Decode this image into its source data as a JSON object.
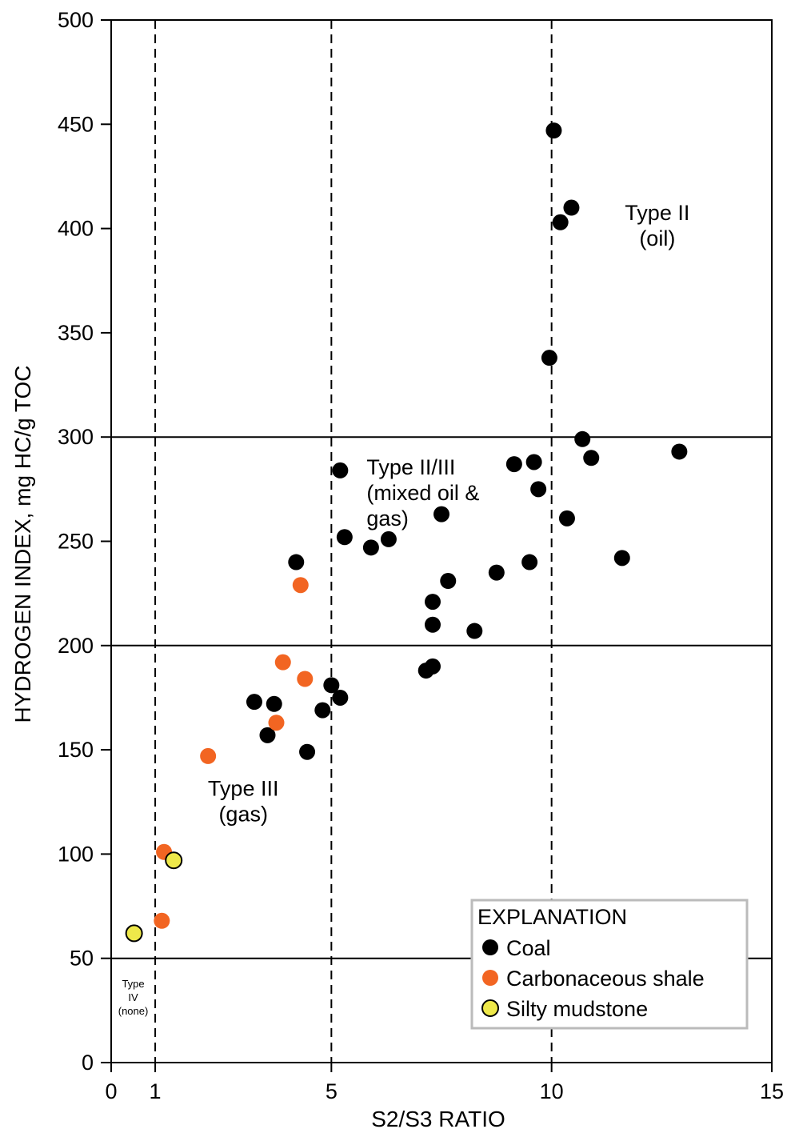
{
  "chart_data": {
    "type": "scatter",
    "xlabel": "S2/S3 RATIO",
    "ylabel": "HYDROGEN INDEX, mg HC/g TOC",
    "xlim": [
      0,
      15
    ],
    "ylim": [
      0,
      500
    ],
    "xticks": [
      0,
      1,
      5,
      10,
      15
    ],
    "yticks": [
      0,
      50,
      100,
      150,
      200,
      250,
      300,
      350,
      400,
      450,
      500
    ],
    "grid": false,
    "vertical_divider_lines": [
      1,
      5,
      10
    ],
    "horizontal_divider_lines": [
      50,
      200,
      300
    ],
    "region_labels": [
      {
        "lines": [
          "Type II",
          "(oil)"
        ],
        "x": 12.4,
        "y": 404,
        "size": "normal",
        "anchor": "middle"
      },
      {
        "lines": [
          "Type II/III",
          "(mixed oil &",
          "gas)"
        ],
        "x": 5.8,
        "y": 282,
        "size": "normal",
        "anchor": "start"
      },
      {
        "lines": [
          "Type III",
          "(gas)"
        ],
        "x": 3.0,
        "y": 128,
        "size": "normal",
        "anchor": "middle"
      },
      {
        "lines": [
          "Type",
          "IV",
          "(none)"
        ],
        "x": 0.5,
        "y": 36,
        "size": "small",
        "anchor": "middle"
      }
    ],
    "legend": {
      "title": "EXPLANATION",
      "position": "bottom-right",
      "entries": [
        {
          "label": "Coal",
          "color": "#000000"
        },
        {
          "label": "Carbonaceous shale",
          "color": "#F26522"
        },
        {
          "label": "Silty mudstone",
          "color": "#EEE84A"
        }
      ]
    },
    "series": [
      {
        "name": "Coal",
        "color": "#000000",
        "points": [
          [
            10.05,
            447
          ],
          [
            10.45,
            410
          ],
          [
            10.2,
            403
          ],
          [
            9.95,
            338
          ],
          [
            10.7,
            299
          ],
          [
            12.9,
            293
          ],
          [
            10.9,
            290
          ],
          [
            9.15,
            287
          ],
          [
            9.6,
            288
          ],
          [
            9.7,
            275
          ],
          [
            5.2,
            284
          ],
          [
            7.5,
            263
          ],
          [
            10.35,
            261
          ],
          [
            5.3,
            252
          ],
          [
            6.3,
            251
          ],
          [
            5.9,
            247
          ],
          [
            4.2,
            240
          ],
          [
            9.5,
            240
          ],
          [
            11.6,
            242
          ],
          [
            8.75,
            235
          ],
          [
            7.65,
            231
          ],
          [
            7.3,
            221
          ],
          [
            7.3,
            210
          ],
          [
            8.25,
            207
          ],
          [
            7.15,
            188
          ],
          [
            7.3,
            190
          ],
          [
            3.25,
            173
          ],
          [
            3.7,
            172
          ],
          [
            5.0,
            181
          ],
          [
            5.2,
            175
          ],
          [
            4.8,
            169
          ],
          [
            3.55,
            157
          ],
          [
            4.45,
            149
          ]
        ]
      },
      {
        "name": "Carbonaceous shale",
        "color": "#F26522",
        "points": [
          [
            4.3,
            229
          ],
          [
            3.9,
            192
          ],
          [
            4.4,
            184
          ],
          [
            3.75,
            163
          ],
          [
            2.2,
            147
          ],
          [
            1.2,
            101
          ],
          [
            1.15,
            68
          ]
        ]
      },
      {
        "name": "Silty mudstone",
        "color": "#EEE84A",
        "points": [
          [
            1.42,
            97
          ],
          [
            0.52,
            62
          ]
        ]
      }
    ]
  }
}
